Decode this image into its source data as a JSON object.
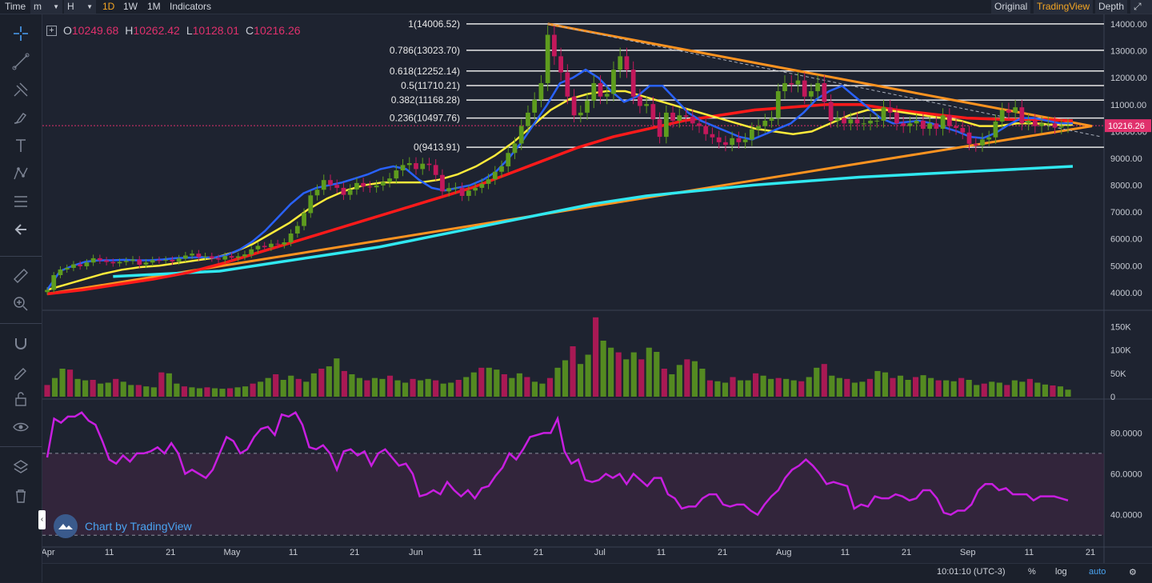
{
  "toolbar": {
    "time_label": "Time",
    "unit_value": "m",
    "hour_value": "H",
    "intervals": [
      "1D",
      "1W",
      "1M"
    ],
    "active_interval": "1D",
    "indicators_label": "Indicators",
    "views": [
      "Original",
      "TradingView",
      "Depth"
    ],
    "active_view": "TradingView"
  },
  "sidebar": {
    "tools": [
      "crosshair-icon",
      "trendline-icon",
      "pitchfork-icon",
      "brush-icon",
      "text-icon",
      "pattern-icon",
      "fib-icon",
      "back-arrow-icon",
      "ruler-icon",
      "zoom-in-icon",
      "magnet-icon",
      "lock-drawing-icon",
      "unlock-icon",
      "eye-icon",
      "layers-icon",
      "trash-icon"
    ]
  },
  "legend": {
    "o_label": "O",
    "o_value": "10249.68",
    "h_label": "H",
    "h_value": "10262.42",
    "l_label": "L",
    "l_value": "10128.01",
    "c_label": "C",
    "c_value": "10216.26"
  },
  "watermark": "Chart by TradingView",
  "status": {
    "clock": "10:01:10 (UTC-3)",
    "percent": "%",
    "log": "log",
    "auto": "auto"
  },
  "colors": {
    "bg": "#1e2330",
    "up": "#5e9c1e",
    "down": "#c2185b",
    "ema_fast": "#2962ff",
    "ema_mid": "#ffeb3b",
    "ema_slow": "#ff1a1a",
    "ema_long": "#30e8f0",
    "triangle": "#ff9320",
    "rsi": "#c81ee0"
  },
  "chart_data": [
    {
      "type": "candlestick",
      "title": "Price",
      "x_ticks": [
        "Apr",
        "11",
        "21",
        "May",
        "11",
        "21",
        "Jun",
        "11",
        "21",
        "Jul",
        "11",
        "21",
        "Aug",
        "11",
        "21",
        "Sep",
        "11",
        "21"
      ],
      "y_ticks": [
        "4000.00",
        "5000.00",
        "6000.00",
        "7000.00",
        "8000.00",
        "9000.00",
        "10000.00",
        "11000.00",
        "12000.00",
        "13000.00",
        "14000.00"
      ],
      "ylim": [
        3400,
        14300
      ],
      "last_price": "10216.26",
      "fib_levels": [
        {
          "label": "1(14006.52)",
          "value": 14006.52
        },
        {
          "label": "0.786(13023.70)",
          "value": 13023.7
        },
        {
          "label": "0.618(12252.14)",
          "value": 12252.14
        },
        {
          "label": "0.5(11710.21)",
          "value": 11710.21
        },
        {
          "label": "0.382(11168.28)",
          "value": 11168.28
        },
        {
          "label": "0.236(10497.76)",
          "value": 10497.76
        },
        {
          "label": "0(9413.91)",
          "value": 9413.91
        }
      ],
      "close": [
        4100,
        4650,
        4860,
        4920,
        5050,
        4980,
        5120,
        5280,
        5200,
        5140,
        5090,
        5140,
        5180,
        5230,
        5040,
        5120,
        5210,
        5200,
        5220,
        5160,
        5270,
        5380,
        5450,
        5320,
        5350,
        5280,
        5230,
        5360,
        5300,
        5350,
        5420,
        5610,
        5740,
        5690,
        5820,
        5790,
        5870,
        6200,
        6480,
        6960,
        7620,
        7830,
        8190,
        8010,
        7900,
        7640,
        7840,
        8080,
        7950,
        7920,
        7990,
        8120,
        8250,
        8550,
        8750,
        8820,
        8600,
        8800,
        8750,
        8380,
        7770,
        7890,
        7900,
        7600,
        7800,
        7900,
        8050,
        8220,
        8500,
        8700,
        9200,
        9550,
        10200,
        10700,
        11180,
        11800,
        13600,
        12800,
        12200,
        11300,
        10600,
        10700,
        11150,
        11800,
        11300,
        11400,
        12300,
        12800,
        12300,
        11300,
        10950,
        11020,
        10450,
        9800,
        10700,
        10400,
        10600,
        10550,
        10300,
        10200,
        9900,
        9780,
        9600,
        9500,
        9750,
        9600,
        9700,
        10080,
        10200,
        10400,
        10500,
        11500,
        11800,
        11750,
        11900,
        11300,
        11500,
        11800,
        11100,
        10400,
        10500,
        10300,
        10450,
        10300,
        10300,
        10400,
        10400,
        10900,
        10700,
        10300,
        10200,
        10300,
        10400,
        10100,
        10300,
        10100,
        10600,
        10200,
        10130,
        9960,
        9540,
        9480,
        9700,
        9780,
        10370,
        10800,
        10700,
        10900,
        10300,
        10400,
        10200,
        10300,
        10300,
        10150,
        10200,
        10220
      ],
      "ema_fast": [
        4100,
        4800,
        5000,
        5150,
        5200,
        5200,
        5220,
        5200,
        5200,
        5230,
        5280,
        5300,
        5320,
        5300,
        5400,
        5600,
        5900,
        6300,
        6800,
        7300,
        7700,
        7900,
        8000,
        8100,
        8250,
        8400,
        8600,
        8700,
        8600,
        8200,
        7900,
        7800,
        7900,
        8000,
        8200,
        8500,
        9000,
        9600,
        10300,
        11000,
        11800,
        12000,
        12300,
        12000,
        11500,
        11100,
        11300,
        11700,
        11700,
        11200,
        10700,
        10400,
        10200,
        10000,
        9800,
        9700,
        9900,
        10100,
        10300,
        10700,
        11200,
        11500,
        11700,
        11300,
        10900,
        10500,
        10300,
        10350,
        10400,
        10300,
        10150,
        10000,
        9800,
        9750,
        9950,
        10250,
        10500,
        10500,
        10400,
        10300,
        10300
      ],
      "ema_mid": [
        4100,
        4300,
        4500,
        4700,
        4850,
        4950,
        5000,
        5100,
        5200,
        5300,
        5500,
        5800,
        6200,
        6600,
        7100,
        7500,
        7800,
        8000,
        8100,
        8100,
        8100,
        8200,
        8400,
        8700,
        9100,
        9600,
        10200,
        10800,
        11200,
        11400,
        11500,
        11500,
        11300,
        11100,
        10900,
        10700,
        10500,
        10300,
        10100,
        10000,
        9900,
        10000,
        10300,
        10600,
        10800,
        10800,
        10700,
        10600,
        10500,
        10400,
        10200,
        10200,
        10300,
        10300,
        10250,
        10250
      ],
      "ema_slow": [
        3950,
        4100,
        4300,
        4500,
        4750,
        5100,
        5500,
        5900,
        6300,
        6700,
        7100,
        7500,
        7900,
        8400,
        8900,
        9400,
        9800,
        10100,
        10400,
        10600,
        10800,
        10900,
        11000,
        11000,
        10800,
        10650,
        10500,
        10450,
        10450,
        10400
      ],
      "ema_long": [
        4600,
        4700,
        4800,
        5100,
        5400,
        5700,
        6100,
        6500,
        6900,
        7300,
        7600,
        7800,
        8000,
        8150,
        8300,
        8400,
        8500,
        8600,
        8700
      ]
    },
    {
      "type": "bar",
      "title": "Volume",
      "y_ticks": [
        "0",
        "50K",
        "100K",
        "150K"
      ],
      "ylim": [
        0,
        180000
      ],
      "values": [
        25,
        40,
        60,
        58,
        38,
        35,
        36,
        28,
        30,
        38,
        32,
        25,
        25,
        22,
        20,
        52,
        50,
        28,
        22,
        20,
        18,
        20,
        18,
        17,
        18,
        20,
        22,
        28,
        32,
        40,
        48,
        36,
        45,
        38,
        32,
        50,
        60,
        65,
        82,
        55,
        48,
        40,
        35,
        40,
        38,
        45,
        35,
        30,
        38,
        35,
        38,
        35,
        28,
        30,
        36,
        42,
        52,
        62,
        62,
        58,
        48,
        40,
        50,
        42,
        32,
        28,
        40,
        62,
        78,
        108,
        70,
        90,
        170,
        120,
        105,
        95,
        80,
        95,
        80,
        105,
        96,
        60,
        48,
        68,
        80,
        76,
        60,
        35,
        33,
        30,
        42,
        35,
        35,
        50,
        45,
        38,
        40,
        38,
        35,
        33,
        42,
        62,
        70,
        45,
        40,
        38,
        30,
        32,
        38,
        55,
        52,
        40,
        45,
        36,
        42,
        46,
        40,
        35,
        35,
        33,
        40,
        36,
        25,
        28,
        32,
        30,
        25,
        35,
        32,
        38,
        30,
        26,
        24,
        22,
        15
      ]
    },
    {
      "type": "line",
      "title": "RSI",
      "y_ticks": [
        "40.0000",
        "60.0000",
        "80.0000"
      ],
      "ylim": [
        25,
        95
      ],
      "upper_band": 70,
      "lower_band": 30,
      "values": [
        68,
        87,
        85,
        88,
        88,
        90,
        86,
        84,
        76,
        67,
        65,
        69,
        66,
        70,
        70,
        71,
        73,
        70,
        75,
        70,
        60,
        62,
        60,
        58,
        62,
        70,
        78,
        76,
        70,
        72,
        78,
        82,
        83,
        79,
        89,
        88,
        90,
        84,
        73,
        72,
        74,
        70,
        62,
        71,
        72,
        69,
        71,
        64,
        70,
        72,
        68,
        64,
        65,
        60,
        49,
        50,
        52,
        50,
        56,
        52,
        49,
        52,
        48,
        53,
        54,
        59,
        63,
        70,
        67,
        72,
        78,
        79,
        80,
        80,
        87,
        71,
        65,
        67,
        57,
        56,
        57,
        60,
        58,
        60,
        55,
        60,
        57,
        54,
        58,
        58,
        50,
        48,
        43,
        44,
        44,
        48,
        50,
        50,
        45,
        44,
        45,
        45,
        42,
        40,
        45,
        49,
        52,
        58,
        62,
        64,
        67,
        64,
        60,
        55,
        56,
        55,
        54,
        43,
        45,
        44,
        49,
        48,
        48,
        50,
        49,
        47,
        48,
        52,
        52,
        48,
        41,
        40,
        42,
        42,
        45,
        52,
        55,
        55,
        52,
        53,
        50,
        50,
        50,
        47,
        49,
        49,
        49,
        48,
        47
      ]
    }
  ]
}
